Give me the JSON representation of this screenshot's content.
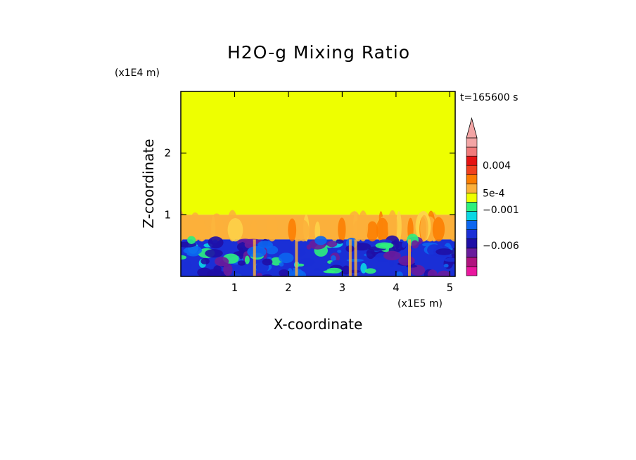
{
  "chart_data": {
    "type": "heatmap",
    "title": "H2O-g Mixing Ratio",
    "xlabel": "X-coordinate",
    "ylabel": "Z-coordinate",
    "x_unit": "(x1E5 m)",
    "y_unit": "(x1E4 m)",
    "time_label": "t=165600 s",
    "xlim": [
      0,
      5.1
    ],
    "ylim": [
      0,
      3
    ],
    "x_ticks": [
      {
        "value": 1,
        "label": "1"
      },
      {
        "value": 2,
        "label": "2"
      },
      {
        "value": 3,
        "label": "3"
      },
      {
        "value": 4,
        "label": "4"
      },
      {
        "value": 5,
        "label": "5"
      }
    ],
    "y_ticks": [
      {
        "value": 1,
        "label": "1"
      },
      {
        "value": 2,
        "label": "2"
      }
    ],
    "field_regions": [
      {
        "name": "upper uniform layer",
        "z_range": [
          1.0,
          3.0
        ],
        "color": "#eeff00"
      },
      {
        "name": "mixed layer top (orange plumes)",
        "z_range": [
          0.6,
          1.0
        ],
        "color": "#fbb03b"
      },
      {
        "name": "lower layer (negative anomalies)",
        "z_range": [
          0.0,
          0.6
        ],
        "color": "#1a2fd6"
      }
    ],
    "colorbar": {
      "colors": [
        "#e9179e",
        "#b0137e",
        "#6a1c9c",
        "#1f0ea6",
        "#1a2fd6",
        "#0c66f0",
        "#0bd7e4",
        "#2ef07d",
        "#eeff00",
        "#fbb03b",
        "#fb7c00",
        "#f0401e",
        "#e51212",
        "#f17a7a",
        "#f3a5a5"
      ],
      "labels": [
        {
          "text": "0.004",
          "value": 0.004
        },
        {
          "text": "5e-4",
          "value": 0.0005
        },
        {
          "text": "−0.001",
          "value": -0.001
        },
        {
          "text": "−0.006",
          "value": -0.006
        }
      ],
      "extend": "max"
    }
  }
}
